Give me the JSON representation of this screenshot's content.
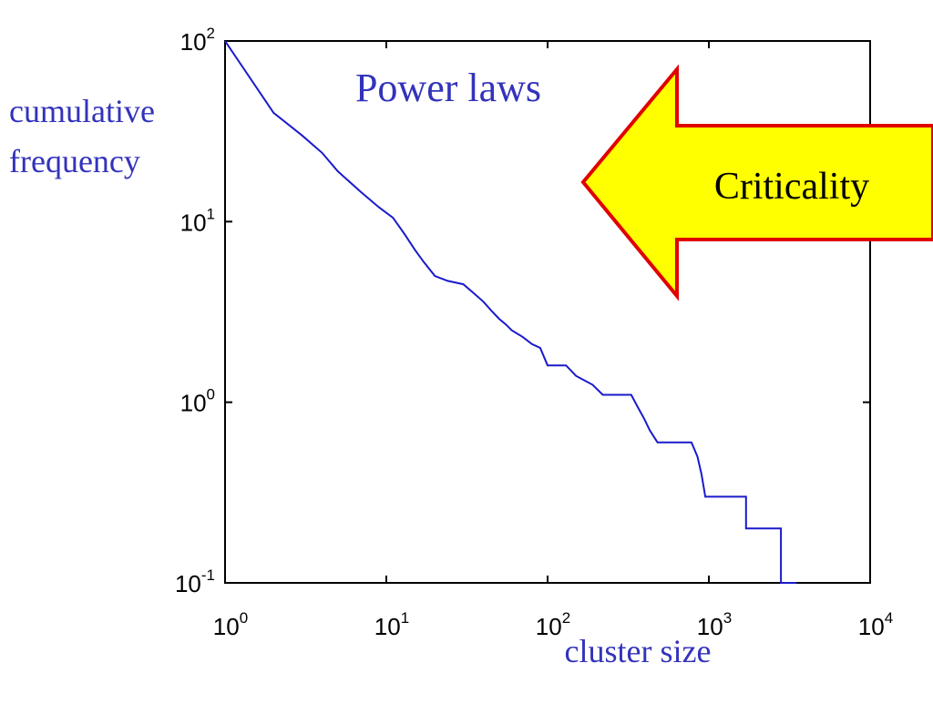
{
  "colors": {
    "series": "#1a1acc",
    "label_text": "#3333bb",
    "arrow_fill": "#ffff00",
    "arrow_stroke": "#e00000",
    "axis": "#000000"
  },
  "callout": {
    "label": "Criticality",
    "shape": "left-pointing-arrow"
  },
  "chart_data": {
    "type": "line",
    "title": "Power laws",
    "xlabel": "cluster size",
    "ylabel_lines": [
      "cumulative",
      "frequency"
    ],
    "xscale": "log",
    "yscale": "log",
    "xlim": [
      1,
      10000
    ],
    "ylim": [
      0.1,
      100
    ],
    "grid": false,
    "x_ticks": [
      {
        "value": 1,
        "base": "10",
        "exp": "0"
      },
      {
        "value": 10,
        "base": "10",
        "exp": "1"
      },
      {
        "value": 100,
        "base": "10",
        "exp": "2"
      },
      {
        "value": 1000,
        "base": "10",
        "exp": "3"
      },
      {
        "value": 10000,
        "base": "10",
        "exp": "4"
      }
    ],
    "y_ticks": [
      {
        "value": 0.1,
        "base": "10",
        "exp": "-1"
      },
      {
        "value": 1,
        "base": "10",
        "exp": "0"
      },
      {
        "value": 10,
        "base": "10",
        "exp": "1"
      },
      {
        "value": 100,
        "base": "10",
        "exp": "2"
      }
    ],
    "series": [
      {
        "line_style": "step",
        "points": [
          [
            1,
            100
          ],
          [
            2,
            40
          ],
          [
            3,
            30
          ],
          [
            4,
            24
          ],
          [
            5,
            19
          ],
          [
            7,
            14.5
          ],
          [
            9,
            12
          ],
          [
            11,
            10.5
          ],
          [
            13,
            8.5
          ],
          [
            15,
            7
          ],
          [
            17,
            6
          ],
          [
            20,
            5
          ],
          [
            24,
            4.7
          ],
          [
            30,
            4.5
          ],
          [
            35,
            4
          ],
          [
            40,
            3.6
          ],
          [
            45,
            3.2
          ],
          [
            50,
            2.9
          ],
          [
            55,
            2.7
          ],
          [
            60,
            2.5
          ],
          [
            70,
            2.3
          ],
          [
            80,
            2.1
          ],
          [
            90,
            2.0
          ],
          [
            100,
            1.6
          ],
          [
            130,
            1.6
          ],
          [
            150,
            1.4
          ],
          [
            190,
            1.25
          ],
          [
            220,
            1.1
          ],
          [
            330,
            1.1
          ],
          [
            360,
            0.95
          ],
          [
            400,
            0.8
          ],
          [
            430,
            0.7
          ],
          [
            480,
            0.6
          ],
          [
            780,
            0.6
          ],
          [
            850,
            0.5
          ],
          [
            900,
            0.4
          ],
          [
            950,
            0.3
          ],
          [
            1700,
            0.3
          ],
          [
            1700,
            0.2
          ],
          [
            2800,
            0.2
          ],
          [
            2800,
            0.1
          ],
          [
            3500,
            0.1
          ]
        ]
      }
    ]
  }
}
